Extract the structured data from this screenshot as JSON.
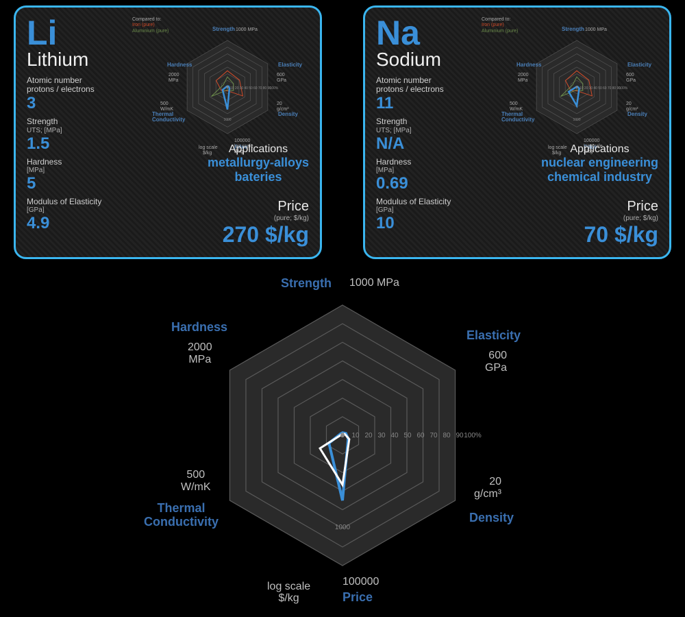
{
  "colors": {
    "card_border": "#3ab6f0",
    "accent": "#3a8fd8",
    "text_light": "#e8e8e8",
    "text_dim": "#b0b0b0",
    "bg": "#000000",
    "hex_line": "#555555",
    "series_main": "#3a8fd8",
    "series_white": "#ffffff",
    "series_iron": "#d04c2a",
    "series_alum": "#6a8a4a"
  },
  "elements": [
    {
      "symbol": "Li",
      "name": "Lithium",
      "atomic_number": "3",
      "strength": "1.5",
      "hardness": "5",
      "modulus": "4.9",
      "applications": "metallurgy-alloys\nbateries",
      "price": "270 $/kg"
    },
    {
      "symbol": "Na",
      "name": "Sodium",
      "atomic_number": "11",
      "strength": "N/A",
      "hardness": "0.69",
      "modulus": "10",
      "applications": "nuclear engineering\nchemical industry",
      "price": "70 $/kg"
    }
  ],
  "labels": {
    "atomic": "Atomic number\nprotons / electrons",
    "strength": "Strength",
    "strength_sub": "UTS; [MPa]",
    "hardness": "Hardness",
    "hardness_sub": "[MPa]",
    "modulus": "Modulus of Elasticity",
    "modulus_sub": "[GPa]",
    "applications": "Applications",
    "price": "Price",
    "price_sub": "(pure; $/kg)",
    "compared": "Compared to:",
    "iron": "Iron (pure)",
    "alum": "Aluminium (pure)"
  },
  "radar": {
    "axes": [
      {
        "name": "Strength",
        "unit": "1000 MPa"
      },
      {
        "name": "Elasticity",
        "unit": "600\nGPa"
      },
      {
        "name": "Density",
        "unit": "20\ng/cm³"
      },
      {
        "name": "Price",
        "unit": "100000\nlog scale\n$/kg"
      },
      {
        "name": "Thermal\nConductivity",
        "unit": "500\nW/mK"
      },
      {
        "name": "Hardness",
        "unit": "2000\nMPa"
      }
    ],
    "ticks": [
      "0",
      "10",
      "20",
      "30",
      "40",
      "50",
      "60",
      "70",
      "80",
      "90",
      "100%"
    ],
    "bottom_tick": "1000",
    "rings": 7,
    "large": {
      "series_blue": [
        2,
        3,
        5,
        50,
        12,
        2
      ],
      "series_white": [
        1,
        2,
        6,
        38,
        20,
        1
      ]
    },
    "small_li": {
      "main": [
        2,
        3,
        5,
        48,
        12,
        2
      ],
      "iron": [
        35,
        30,
        38,
        8,
        15,
        28
      ],
      "alum": [
        22,
        15,
        15,
        6,
        40,
        10
      ]
    },
    "small_na": {
      "main": [
        1,
        2,
        6,
        40,
        20,
        1
      ],
      "iron": [
        35,
        30,
        38,
        8,
        15,
        28
      ],
      "alum": [
        22,
        15,
        15,
        6,
        40,
        10
      ]
    }
  }
}
